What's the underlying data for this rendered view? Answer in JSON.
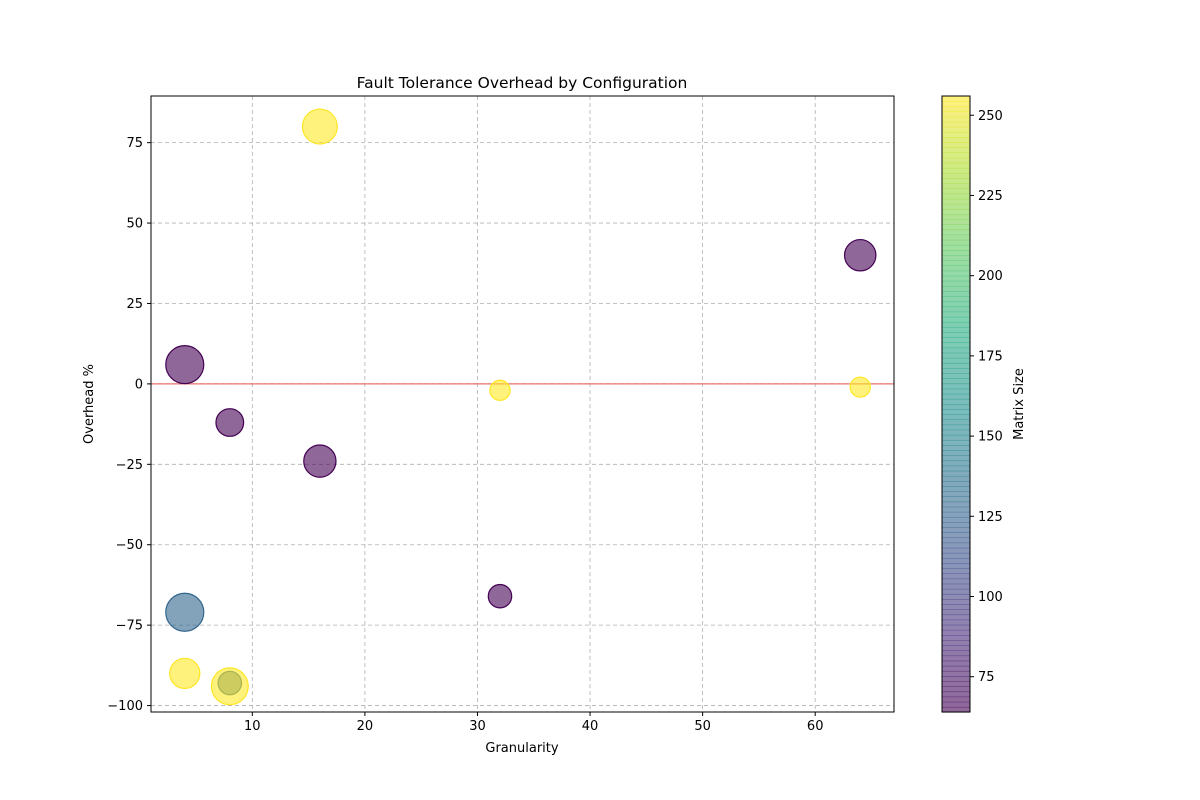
{
  "chart_data": {
    "type": "scatter",
    "title": "Fault Tolerance Overhead by Configuration",
    "xlabel": "Granularity",
    "ylabel": "Overhead %",
    "xlim": [
      1.0,
      67.0
    ],
    "ylim": [
      -102.0,
      89.5
    ],
    "xticks": [
      10,
      20,
      30,
      40,
      50,
      60
    ],
    "yticks": [
      -100,
      -75,
      -50,
      -25,
      0,
      25,
      50,
      75
    ],
    "grid": true,
    "reference_line": {
      "y": 0,
      "color": "#e8544e"
    },
    "colorbar": {
      "label": "Matrix Size",
      "colormap": "viridis",
      "range": [
        64,
        256
      ],
      "ticks": [
        75,
        100,
        125,
        150,
        175,
        200,
        225,
        250
      ]
    },
    "marker_alpha": 0.6,
    "points": [
      {
        "x": 4,
        "y": 6,
        "matrix_size": 64,
        "relative_size": 1.0
      },
      {
        "x": 4,
        "y": -71,
        "matrix_size": 128,
        "relative_size": 1.0
      },
      {
        "x": 4,
        "y": -90,
        "matrix_size": 256,
        "relative_size": 0.63
      },
      {
        "x": 8,
        "y": -12,
        "matrix_size": 64,
        "relative_size": 0.53
      },
      {
        "x": 8,
        "y": -93,
        "matrix_size": 128,
        "relative_size": 0.38
      },
      {
        "x": 8,
        "y": -94,
        "matrix_size": 256,
        "relative_size": 0.94
      },
      {
        "x": 16,
        "y": 80,
        "matrix_size": 256,
        "relative_size": 0.84
      },
      {
        "x": 16,
        "y": -24,
        "matrix_size": 64,
        "relative_size": 0.72
      },
      {
        "x": 32,
        "y": -2,
        "matrix_size": 256,
        "relative_size": 0.28
      },
      {
        "x": 32,
        "y": -66,
        "matrix_size": 64,
        "relative_size": 0.38
      },
      {
        "x": 64,
        "y": 40,
        "matrix_size": 64,
        "relative_size": 0.68
      },
      {
        "x": 64,
        "y": -1,
        "matrix_size": 256,
        "relative_size": 0.28
      }
    ]
  }
}
